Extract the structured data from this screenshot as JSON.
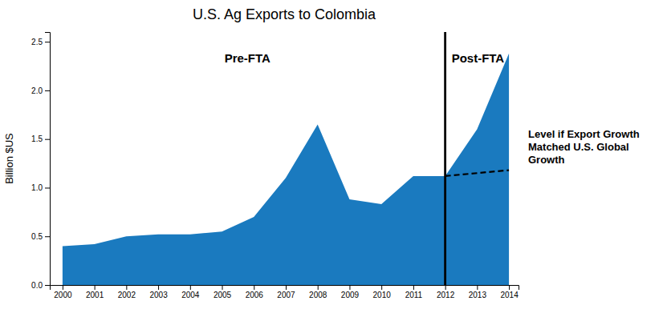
{
  "chart_data": {
    "type": "area",
    "title": "U.S. Ag Exports to Colombia",
    "ylabel": "Billion $US",
    "x": [
      2000,
      2001,
      2002,
      2003,
      2004,
      2005,
      2006,
      2007,
      2008,
      2009,
      2010,
      2011,
      2012,
      2013,
      2014
    ],
    "series": [
      {
        "type": "area",
        "color": "#1a7abf",
        "values": [
          0.4,
          0.42,
          0.5,
          0.52,
          0.52,
          0.55,
          0.7,
          1.1,
          1.65,
          0.88,
          0.83,
          1.12,
          1.12,
          1.6,
          2.38
        ]
      },
      {
        "type": "line",
        "line_style": "dashed",
        "color": "#000000",
        "values": [
          null,
          null,
          null,
          null,
          null,
          null,
          null,
          null,
          null,
          null,
          null,
          null,
          1.12,
          1.15,
          1.18
        ]
      }
    ],
    "vline": 2012,
    "annotations": [
      "Pre-FTA",
      "Post-FTA",
      "Level if Export Growth\nMatched U.S. Global\nGrowth"
    ],
    "xlim": [
      1999.6,
      2014.3
    ],
    "xticks": [
      2000,
      2001,
      2002,
      2003,
      2004,
      2005,
      2006,
      2007,
      2008,
      2009,
      2010,
      2011,
      2012,
      2013,
      2014
    ],
    "ylim": [
      0,
      2.6
    ],
    "yticks": [
      {
        "value": 0.0,
        "label": "0.0"
      },
      0.5,
      {
        "value": 1.0,
        "label": "1.0"
      },
      1.5,
      {
        "value": 2.0,
        "label": "2.0"
      },
      2.5
    ],
    "grid": false
  }
}
